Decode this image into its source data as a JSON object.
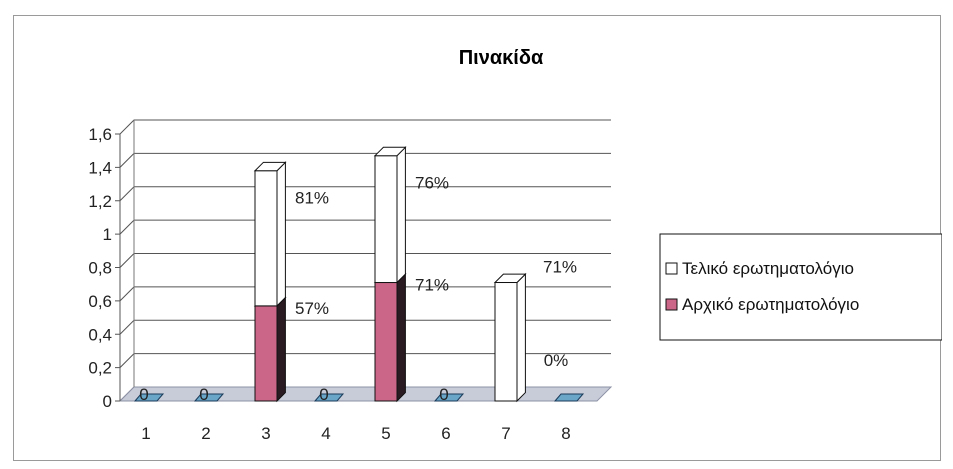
{
  "chart_data": {
    "type": "bar",
    "stacked": true,
    "three_d": true,
    "title": "Πινακίδα",
    "categories": [
      "1",
      "2",
      "3",
      "4",
      "5",
      "6",
      "7",
      "8"
    ],
    "series": [
      {
        "name": "Αρχικό ερωτηματολόγιο",
        "values": [
          0,
          0,
          0.57,
          0,
          0.71,
          0,
          0,
          0
        ],
        "labels": [
          "0",
          "0",
          "57%",
          "0",
          "71%",
          "0",
          "",
          "0%"
        ]
      },
      {
        "name": "Τελικό ερωτηματολόγιο",
        "values": [
          0,
          0,
          0.81,
          0,
          0.76,
          0,
          0.71,
          0
        ],
        "labels": [
          "",
          "",
          "81%",
          "",
          "76%",
          "",
          "71%",
          ""
        ]
      }
    ],
    "ylim": [
      0,
      1.6
    ],
    "yticks": [
      "0",
      "0,2",
      "0,4",
      "0,6",
      "0,8",
      "1",
      "1,2",
      "1,4",
      "1,6"
    ],
    "grid": true,
    "legend_position": "right",
    "colors": {
      "series_0": "#cc6688",
      "series_0_side": "#2a1a22",
      "series_1": "#ffffff",
      "floor": "#c8ccd8",
      "zero_marker": "#6aa6c8"
    }
  }
}
